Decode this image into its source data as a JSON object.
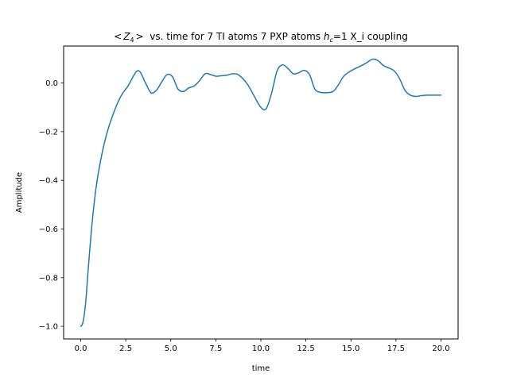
{
  "chart_data": {
    "type": "line",
    "title_parts": [
      "<",
      "Z",
      "4",
      ">",
      "  vs. time for 7 TI atoms 7 PXP atoms ",
      "h",
      "c",
      "=1 X_i coupling"
    ],
    "xlabel": "time",
    "ylabel": "Amplitude",
    "xlim": [
      -0.95,
      20.95
    ],
    "ylim": [
      -1.052,
      0.152
    ],
    "x_ticks": [
      0.0,
      2.5,
      5.0,
      7.5,
      10.0,
      12.5,
      15.0,
      17.5,
      20.0
    ],
    "x_tick_labels": [
      "0.0",
      "2.5",
      "5.0",
      "7.5",
      "10.0",
      "12.5",
      "15.0",
      "17.5",
      "20.0"
    ],
    "y_ticks": [
      -1.0,
      -0.8,
      -0.6,
      -0.4,
      -0.2,
      0.0
    ],
    "y_tick_labels": [
      "−1.0",
      "−0.8",
      "−0.6",
      "−0.4",
      "−0.2",
      "0.0"
    ],
    "grid": false,
    "series": [
      {
        "color": "#1f77b4",
        "x": [
          0.0,
          0.1,
          0.2,
          0.3,
          0.4,
          0.6,
          0.8,
          1.0,
          1.3,
          1.6,
          2.0,
          2.3,
          2.6,
          2.9,
          3.1,
          3.3,
          3.6,
          3.9,
          4.2,
          4.5,
          4.8,
          5.1,
          5.4,
          5.7,
          6.0,
          6.3,
          6.6,
          6.9,
          7.2,
          7.5,
          7.8,
          8.1,
          8.4,
          8.7,
          9.0,
          9.3,
          9.6,
          10.0,
          10.3,
          10.6,
          10.9,
          11.2,
          11.5,
          11.8,
          12.1,
          12.4,
          12.7,
          13.0,
          13.3,
          13.6,
          14.0,
          14.3,
          14.6,
          15.0,
          15.4,
          15.8,
          16.2,
          16.5,
          16.8,
          17.1,
          17.4,
          17.7,
          18.0,
          18.3,
          18.6,
          18.9,
          19.2,
          19.5,
          19.8,
          20.0
        ],
        "y": [
          -1.0,
          -0.99,
          -0.95,
          -0.88,
          -0.78,
          -0.6,
          -0.46,
          -0.36,
          -0.25,
          -0.17,
          -0.09,
          -0.045,
          -0.015,
          0.025,
          0.048,
          0.045,
          0.0,
          -0.04,
          -0.03,
          0.005,
          0.035,
          0.025,
          -0.025,
          -0.035,
          -0.02,
          -0.012,
          0.01,
          0.038,
          0.035,
          0.028,
          0.03,
          0.032,
          0.038,
          0.036,
          0.018,
          -0.01,
          -0.05,
          -0.1,
          -0.105,
          -0.04,
          0.05,
          0.075,
          0.06,
          0.038,
          0.042,
          0.052,
          0.035,
          -0.025,
          -0.038,
          -0.04,
          -0.035,
          -0.008,
          0.028,
          0.05,
          0.065,
          0.08,
          0.098,
          0.092,
          0.072,
          0.062,
          0.05,
          0.018,
          -0.03,
          -0.05,
          -0.055,
          -0.052,
          -0.05,
          -0.05,
          -0.05,
          -0.05
        ]
      }
    ]
  }
}
